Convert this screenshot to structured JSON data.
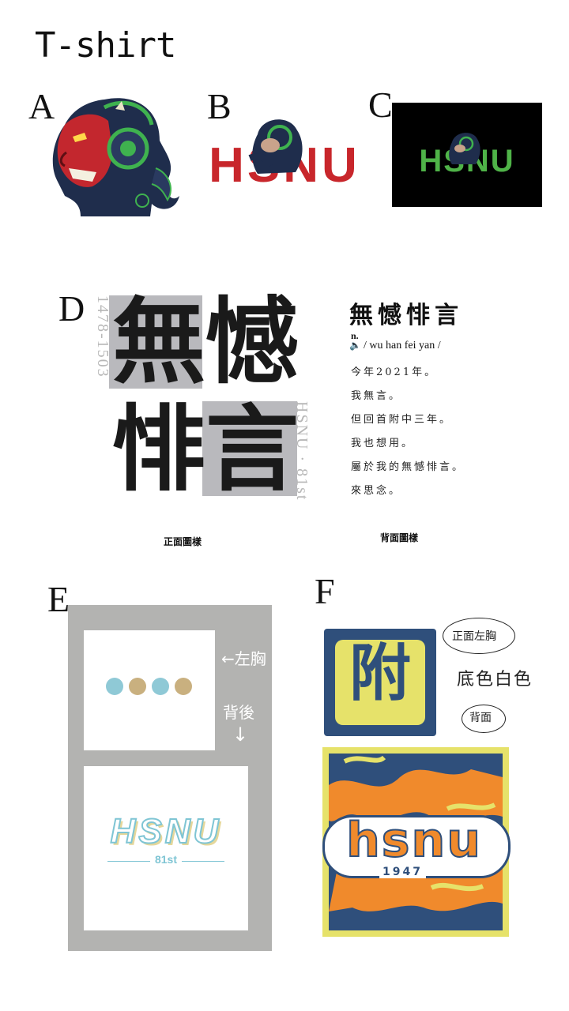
{
  "title": "T-shirt",
  "options": {
    "a": "A",
    "b": "B",
    "c": "C",
    "d": "D",
    "e": "E",
    "f": "F"
  },
  "design_b": {
    "text": "HSNU",
    "color": "#c8262b"
  },
  "design_c": {
    "text": "HSNU",
    "color": "#4fb348",
    "background": "#000000"
  },
  "design_d": {
    "front": {
      "chars": [
        "無",
        "憾",
        "悱",
        "言"
      ],
      "side_left": "1478-1503",
      "side_right": "HSNU · 81st",
      "caption": "正面圖樣"
    },
    "back": {
      "heading": "無憾悱言",
      "pos": "n.",
      "pronunciation": "/ wu han fei yan /",
      "lines": [
        "今年2021年。",
        "我無言。",
        "但回首附中三年。",
        "我也想用。",
        "屬於我的無憾悱言。",
        "來思念。"
      ],
      "caption": "背面圖樣"
    }
  },
  "design_e": {
    "left_chest_note": "←左胸",
    "back_note": "背後",
    "down_arrow": "↓",
    "dot_colors": [
      "#8fc9d6",
      "#c9b07f",
      "#8fc9d6",
      "#c9b07f"
    ],
    "logo_text": "HSNU",
    "logo_sub": "81st"
  },
  "design_f": {
    "badge_text": "附",
    "note_front": "正面左胸",
    "note_color": "底色白色",
    "note_back": "背面",
    "logo_text": "hsnu",
    "year": "1947",
    "navy": "#2f4f7b",
    "yellow": "#e6e26a",
    "orange": "#f08a2c"
  }
}
